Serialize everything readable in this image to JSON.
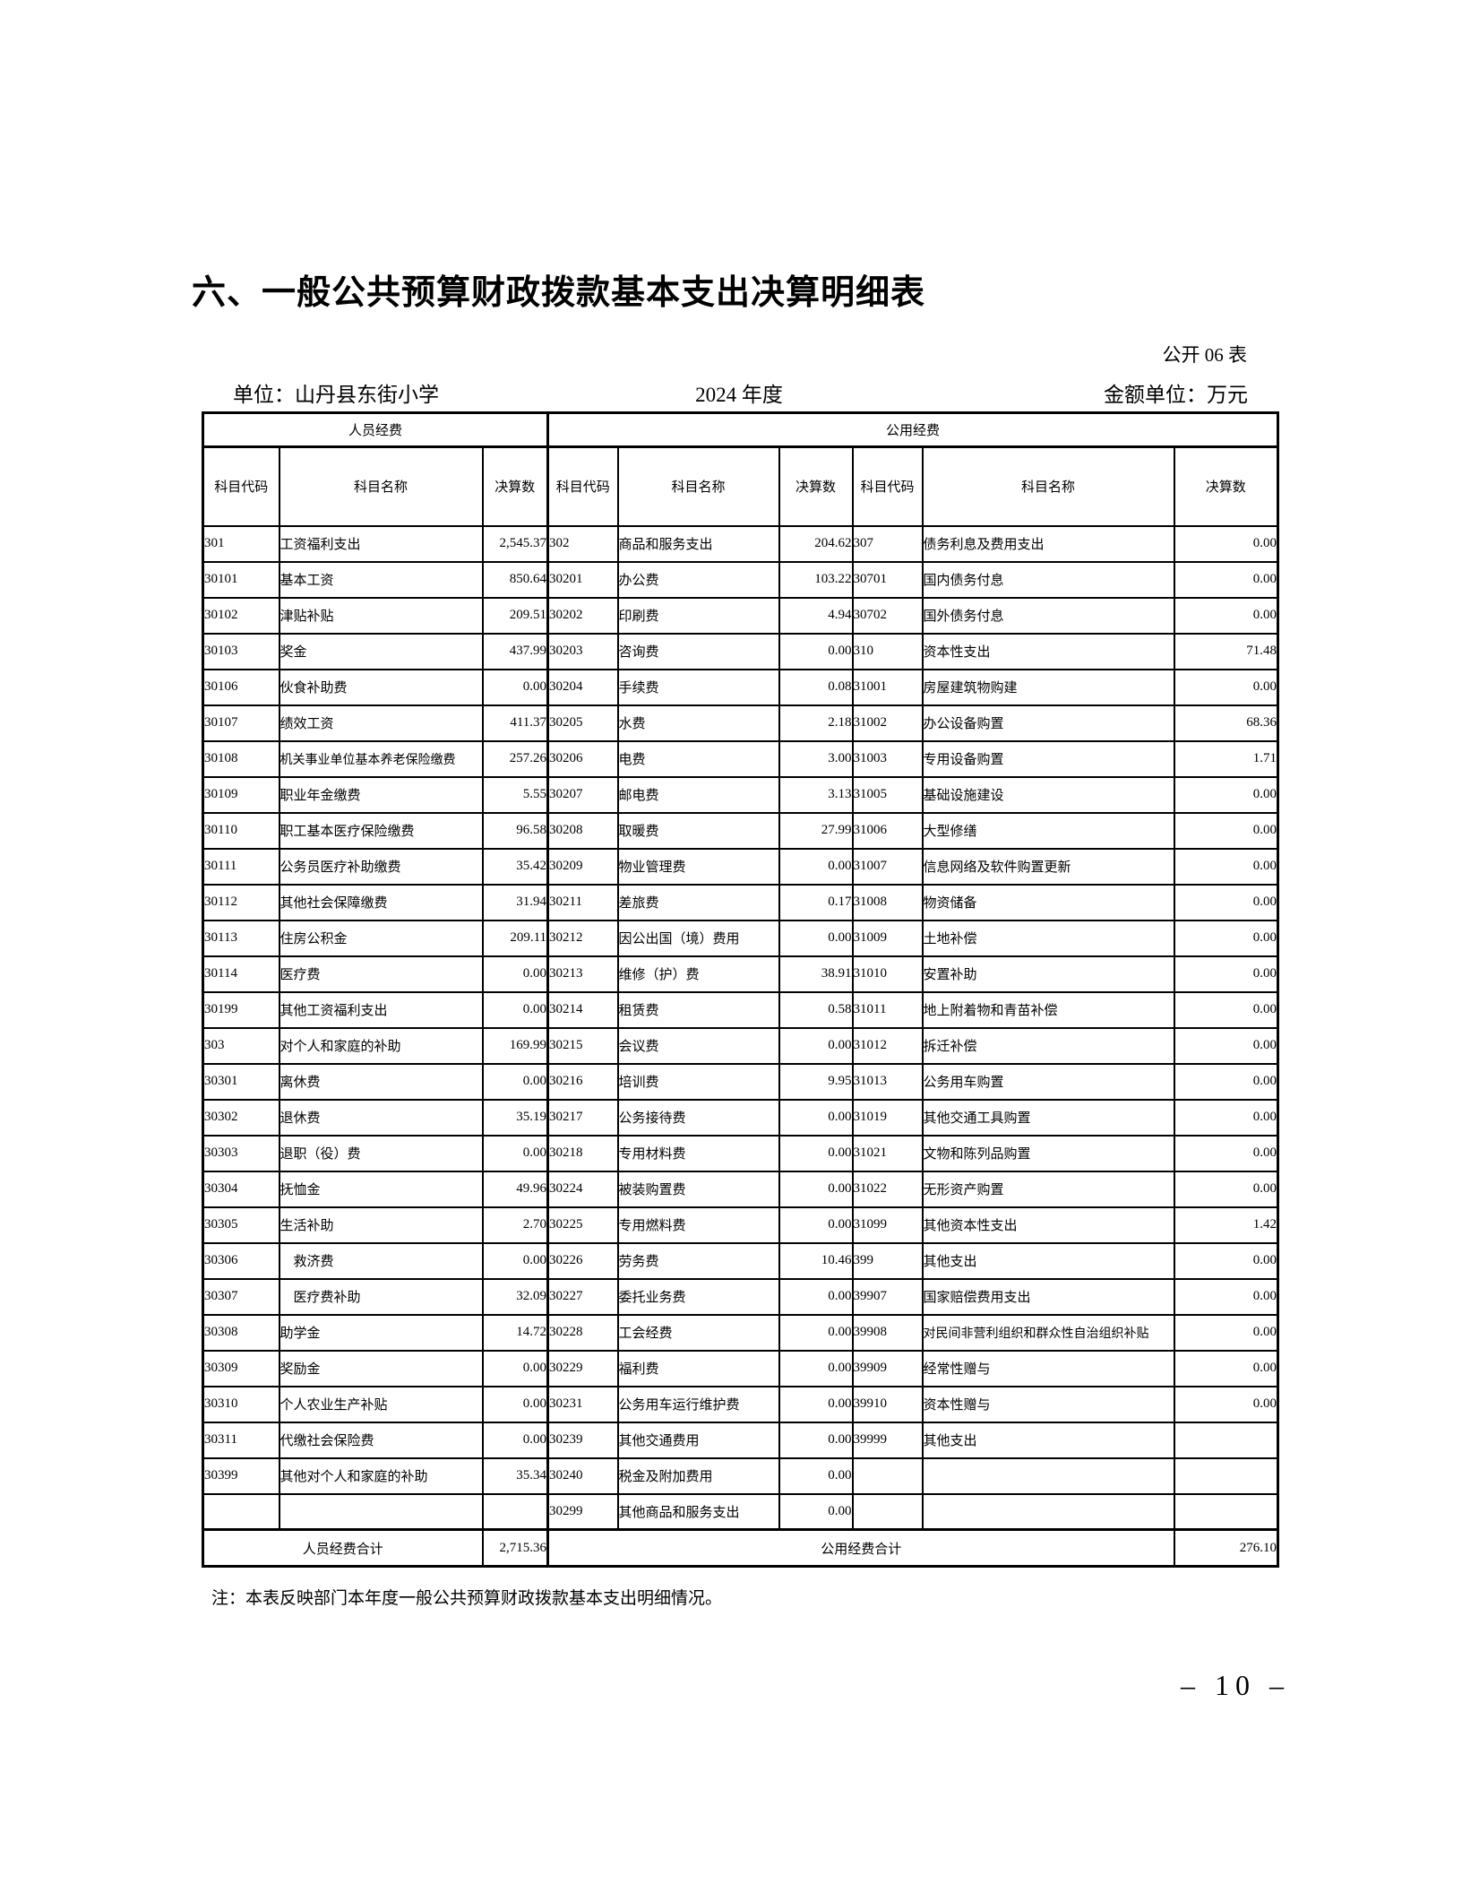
{
  "page": {
    "title": "六、一般公共预算财政拨款基本支出决算明细表",
    "table_code": "公开 06 表",
    "unit_label": "单位：山丹县东街小学",
    "year": "2024 年度",
    "amount_unit": "金额单位：万元",
    "note": "注：本表反映部门本年度一般公共预算财政拨款基本支出明细情况。",
    "page_number": "– 10 –"
  },
  "table": {
    "section_headers": [
      "人员经费",
      "公用经费"
    ],
    "column_headers": [
      "科目代码",
      "科目名称",
      "决算数",
      "科目代码",
      "科目名称",
      "决算数",
      "科目代码",
      "科目名称",
      "决算数"
    ],
    "rows": [
      [
        "301",
        "工资福利支出",
        "2,545.37",
        "302",
        "商品和服务支出",
        "204.62",
        "307",
        "债务利息及费用支出",
        "0.00"
      ],
      [
        "30101",
        "基本工资",
        "850.64",
        "30201",
        "办公费",
        "103.22",
        "30701",
        "国内债务付息",
        "0.00"
      ],
      [
        "30102",
        "津贴补贴",
        "209.51",
        "30202",
        "印刷费",
        "4.94",
        "30702",
        "国外债务付息",
        "0.00"
      ],
      [
        "30103",
        "奖金",
        "437.99",
        "30203",
        "咨询费",
        "0.00",
        "310",
        "资本性支出",
        "71.48"
      ],
      [
        "30106",
        "伙食补助费",
        "0.00",
        "30204",
        "手续费",
        "0.08",
        "31001",
        "房屋建筑物购建",
        "0.00"
      ],
      [
        "30107",
        "绩效工资",
        "411.37",
        "30205",
        "水费",
        "2.18",
        "31002",
        "办公设备购置",
        "68.36"
      ],
      [
        "30108",
        "机关事业单位基本养老保险缴费",
        "257.26",
        "30206",
        "电费",
        "3.00",
        "31003",
        "专用设备购置",
        "1.71"
      ],
      [
        "30109",
        "职业年金缴费",
        "5.55",
        "30207",
        "邮电费",
        "3.13",
        "31005",
        "基础设施建设",
        "0.00"
      ],
      [
        "30110",
        "职工基本医疗保险缴费",
        "96.58",
        "30208",
        "取暖费",
        "27.99",
        "31006",
        "大型修缮",
        "0.00"
      ],
      [
        "30111",
        "公务员医疗补助缴费",
        "35.42",
        "30209",
        "物业管理费",
        "0.00",
        "31007",
        "信息网络及软件购置更新",
        "0.00"
      ],
      [
        "30112",
        "其他社会保障缴费",
        "31.94",
        "30211",
        "差旅费",
        "0.17",
        "31008",
        "物资储备",
        "0.00"
      ],
      [
        "30113",
        "住房公积金",
        "209.11",
        "30212",
        "因公出国（境）费用",
        "0.00",
        "31009",
        "土地补偿",
        "0.00"
      ],
      [
        "30114",
        "医疗费",
        "0.00",
        "30213",
        "维修（护）费",
        "38.91",
        "31010",
        "安置补助",
        "0.00"
      ],
      [
        "30199",
        "其他工资福利支出",
        "0.00",
        "30214",
        "租赁费",
        "0.58",
        "31011",
        "地上附着物和青苗补偿",
        "0.00"
      ],
      [
        "303",
        "对个人和家庭的补助",
        "169.99",
        "30215",
        "会议费",
        "0.00",
        "31012",
        "拆迁补偿",
        "0.00"
      ],
      [
        "30301",
        "离休费",
        "0.00",
        "30216",
        "培训费",
        "9.95",
        "31013",
        "公务用车购置",
        "0.00"
      ],
      [
        "30302",
        "退休费",
        "35.19",
        "30217",
        "公务接待费",
        "0.00",
        "31019",
        "其他交通工具购置",
        "0.00"
      ],
      [
        "30303",
        "退职（役）费",
        "0.00",
        "30218",
        "专用材料费",
        "0.00",
        "31021",
        "文物和陈列品购置",
        "0.00"
      ],
      [
        "30304",
        "抚恤金",
        "49.96",
        "30224",
        "被装购置费",
        "0.00",
        "31022",
        "无形资产购置",
        "0.00"
      ],
      [
        "30305",
        "生活补助",
        "2.70",
        "30225",
        "专用燃料费",
        "0.00",
        "31099",
        "其他资本性支出",
        "1.42"
      ],
      [
        "30306",
        "　救济费",
        "0.00",
        "30226",
        "劳务费",
        "10.46",
        "399",
        "其他支出",
        "0.00"
      ],
      [
        "30307",
        "　医疗费补助",
        "32.09",
        "30227",
        "委托业务费",
        "0.00",
        "39907",
        "国家赔偿费用支出",
        "0.00"
      ],
      [
        "30308",
        "助学金",
        "14.72",
        "30228",
        "工会经费",
        "0.00",
        "39908",
        "对民间非营利组织和群众性自治组织补贴",
        "0.00"
      ],
      [
        "30309",
        "奖励金",
        "0.00",
        "30229",
        "福利费",
        "0.00",
        "39909",
        "经常性赠与",
        "0.00"
      ],
      [
        "30310",
        "个人农业生产补贴",
        "0.00",
        "30231",
        "公务用车运行维护费",
        "0.00",
        "39910",
        "资本性赠与",
        "0.00"
      ],
      [
        "30311",
        "代缴社会保险费",
        "0.00",
        "30239",
        "其他交通费用",
        "0.00",
        "39999",
        "其他支出",
        ""
      ],
      [
        "30399",
        "其他对个人和家庭的补助",
        "35.34",
        "30240",
        "税金及附加费用",
        "0.00",
        "",
        "",
        ""
      ],
      [
        "",
        "",
        "",
        "30299",
        "其他商品和服务支出",
        "0.00",
        "",
        "",
        ""
      ]
    ],
    "totals": {
      "personnel_label": "人员经费合计",
      "personnel_value": "2,715.36",
      "public_label": "公用经费合计",
      "public_value": "276.10"
    }
  }
}
